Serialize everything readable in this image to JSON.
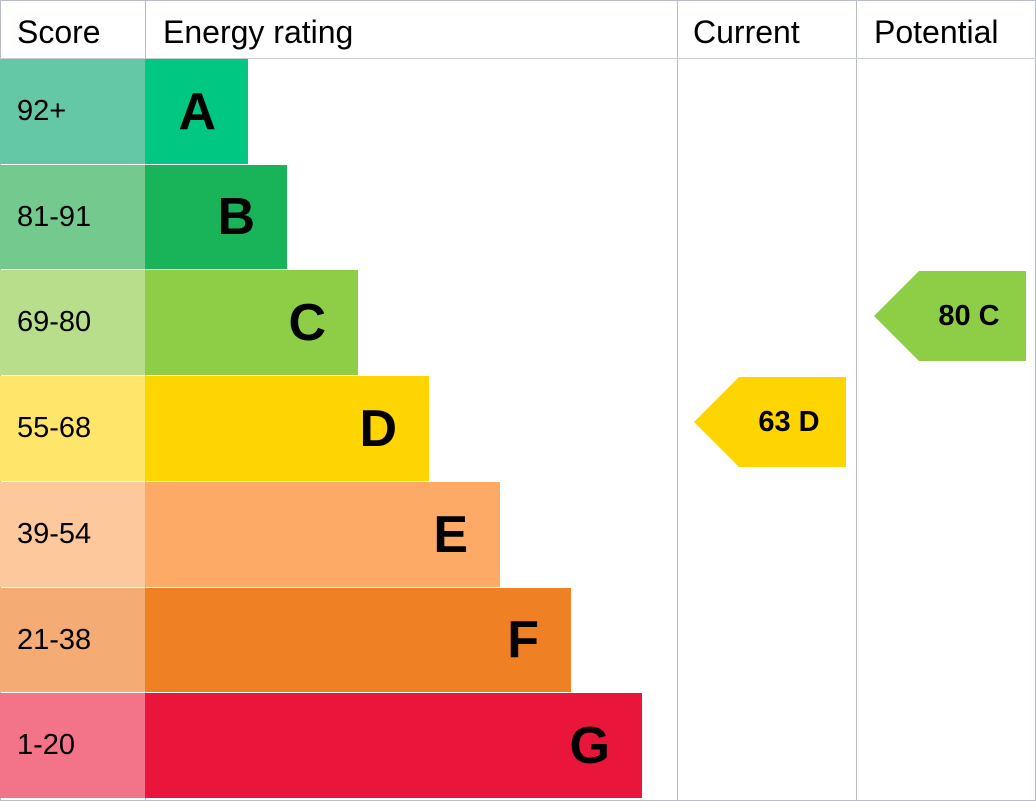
{
  "chart_data": {
    "type": "bar",
    "headers": {
      "score": "Score",
      "rating": "Energy rating",
      "current": "Current",
      "potential": "Potential"
    },
    "bands": [
      {
        "score": "92+",
        "letter": "A",
        "color": "#00c781",
        "light_color": "#64c7a5"
      },
      {
        "score": "81-91",
        "letter": "B",
        "color": "#19b459",
        "light_color": "#74c98e"
      },
      {
        "score": "69-80",
        "letter": "C",
        "color": "#8dce46",
        "light_color": "#b8de8c"
      },
      {
        "score": "55-68",
        "letter": "D",
        "color": "#ffd500",
        "light_color": "#ffe56a"
      },
      {
        "score": "39-54",
        "letter": "E",
        "color": "#fcaa65",
        "light_color": "#fdc89c"
      },
      {
        "score": "21-38",
        "letter": "F",
        "color": "#ef8023",
        "light_color": "#f4ac74"
      },
      {
        "score": "1-20",
        "letter": "G",
        "color": "#e9153b",
        "light_color": "#f37489"
      }
    ],
    "current": {
      "value": 63,
      "letter": "D",
      "label": "63 D"
    },
    "potential": {
      "value": 80,
      "letter": "C",
      "label": "80 C"
    }
  }
}
